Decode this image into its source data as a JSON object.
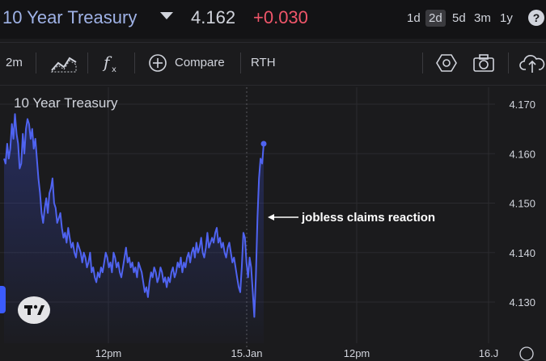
{
  "header": {
    "symbol": "10 Year Treasury",
    "price": "4.162",
    "change": "+0.030",
    "ranges": [
      "1d",
      "2d",
      "5d",
      "3m",
      "1y"
    ],
    "active_range": "2d",
    "help_label": "?"
  },
  "toolbar": {
    "interval": "2m",
    "compare_label": "Compare",
    "rth_label": "RTH",
    "icons": [
      "chart-style-icon",
      "indicators-icon",
      "add-compare-icon",
      "settings-hexagon-icon",
      "camera-icon",
      "share-cloud-icon"
    ]
  },
  "chart_data": {
    "type": "area",
    "title": "10 Year Treasury",
    "annotation": "jobless claims reaction",
    "y_ticks": [
      "4.170",
      "4.160",
      "4.150",
      "4.140",
      "4.130"
    ],
    "ylim": [
      4.125,
      4.172
    ],
    "x_ticks": [
      "12pm",
      "15.Jan",
      "12pm",
      "16.J"
    ],
    "grid": true,
    "line_color": "#4f63f0",
    "values": [
      4.159,
      4.158,
      4.162,
      4.159,
      4.161,
      4.166,
      4.163,
      4.168,
      4.164,
      4.162,
      4.157,
      4.158,
      4.164,
      4.16,
      4.165,
      4.167,
      4.166,
      4.163,
      4.165,
      4.161,
      4.163,
      4.159,
      4.155,
      4.152,
      4.148,
      4.146,
      4.149,
      4.151,
      4.148,
      4.152,
      4.153,
      4.155,
      4.15,
      4.149,
      4.146,
      4.147,
      4.148,
      4.145,
      4.143,
      4.144,
      4.142,
      4.145,
      4.143,
      4.141,
      4.142,
      4.14,
      4.139,
      4.142,
      4.141,
      4.14,
      4.138,
      4.14,
      4.139,
      4.137,
      4.138,
      4.14,
      4.136,
      4.137,
      4.135,
      4.134,
      4.136,
      4.135,
      4.137,
      4.136,
      4.138,
      4.14,
      4.139,
      4.137,
      4.138,
      4.136,
      4.14,
      4.139,
      4.137,
      4.138,
      4.136,
      4.135,
      4.137,
      4.139,
      4.141,
      4.138,
      4.139,
      4.137,
      4.138,
      4.136,
      4.137,
      4.135,
      4.138,
      4.137,
      4.136,
      4.134,
      4.132,
      4.133,
      4.131,
      4.134,
      4.136,
      4.135,
      4.137,
      4.136,
      4.134,
      4.135,
      4.137,
      4.136,
      4.134,
      4.135,
      4.133,
      4.135,
      4.134,
      4.136,
      4.137,
      4.135,
      4.136,
      4.138,
      4.137,
      4.139,
      4.136,
      4.138,
      4.137,
      4.139,
      4.14,
      4.138,
      4.14,
      4.141,
      4.139,
      4.142,
      4.14,
      4.141,
      4.143,
      4.14,
      4.139,
      4.141,
      4.144,
      4.141,
      4.142,
      4.143,
      4.142,
      4.144,
      4.145,
      4.142,
      4.143,
      4.141,
      4.142,
      4.14,
      4.139,
      4.141,
      4.142,
      4.14,
      4.138,
      4.139,
      4.137,
      4.135,
      4.133,
      4.132,
      4.137,
      4.144,
      4.143,
      4.138,
      4.135,
      4.139,
      4.137,
      4.132,
      4.127,
      4.135,
      4.147,
      4.155,
      4.159,
      4.158,
      4.162
    ]
  }
}
